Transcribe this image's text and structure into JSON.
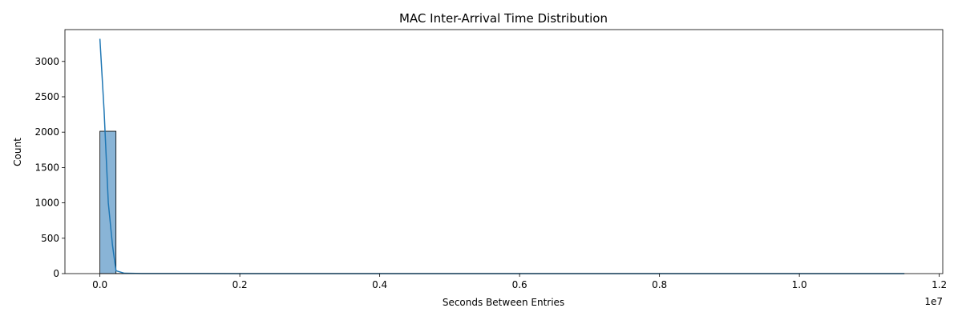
{
  "chart_data": {
    "type": "bar",
    "title": "MAC Inter-Arrival Time Distribution",
    "xlabel": "Seconds Between Entries",
    "ylabel": "Count",
    "x_offset_text": "1e7",
    "xlim": [
      -0.05,
      1.205
    ],
    "ylim": [
      0,
      3450
    ],
    "x_scale_factor": 10000000,
    "xticks": [
      0.0,
      0.2,
      0.4,
      0.6,
      0.8,
      1.0,
      1.2
    ],
    "xtick_labels": [
      "0.0",
      "0.2",
      "0.4",
      "0.6",
      "0.8",
      "1.0",
      "1.2"
    ],
    "yticks": [
      0,
      500,
      1000,
      1500,
      2000,
      2500,
      3000
    ],
    "ytick_labels": [
      "0",
      "500",
      "1000",
      "1500",
      "2000",
      "2500",
      "3000"
    ],
    "bin_start": 0.0,
    "bin_width": 0.023,
    "bin_counts": [
      2013,
      2,
      1,
      0,
      0,
      0,
      0,
      0,
      0,
      0,
      0,
      0,
      0,
      0,
      0,
      0,
      0,
      0,
      0,
      0,
      0,
      0,
      0,
      0,
      0,
      0,
      0,
      0,
      0,
      0,
      0,
      0,
      0,
      0,
      0,
      0,
      0,
      0,
      0,
      0,
      0,
      0,
      0,
      0,
      0,
      0,
      0,
      0,
      0,
      1
    ],
    "kde": {
      "x": [
        0.0,
        0.006,
        0.012,
        0.018,
        0.023,
        0.035,
        0.06,
        0.2,
        0.4,
        0.6,
        0.8,
        1.0,
        1.15
      ],
      "y": [
        3320,
        2300,
        1000,
        400,
        40,
        5,
        2,
        0,
        0,
        0,
        0,
        0,
        0
      ]
    },
    "grid": false,
    "legend": "none",
    "colors": {
      "bar_fill": "#89b4d6",
      "bar_edge": "#000000",
      "kde_line": "#1f77b4",
      "axes": "#000000"
    }
  }
}
